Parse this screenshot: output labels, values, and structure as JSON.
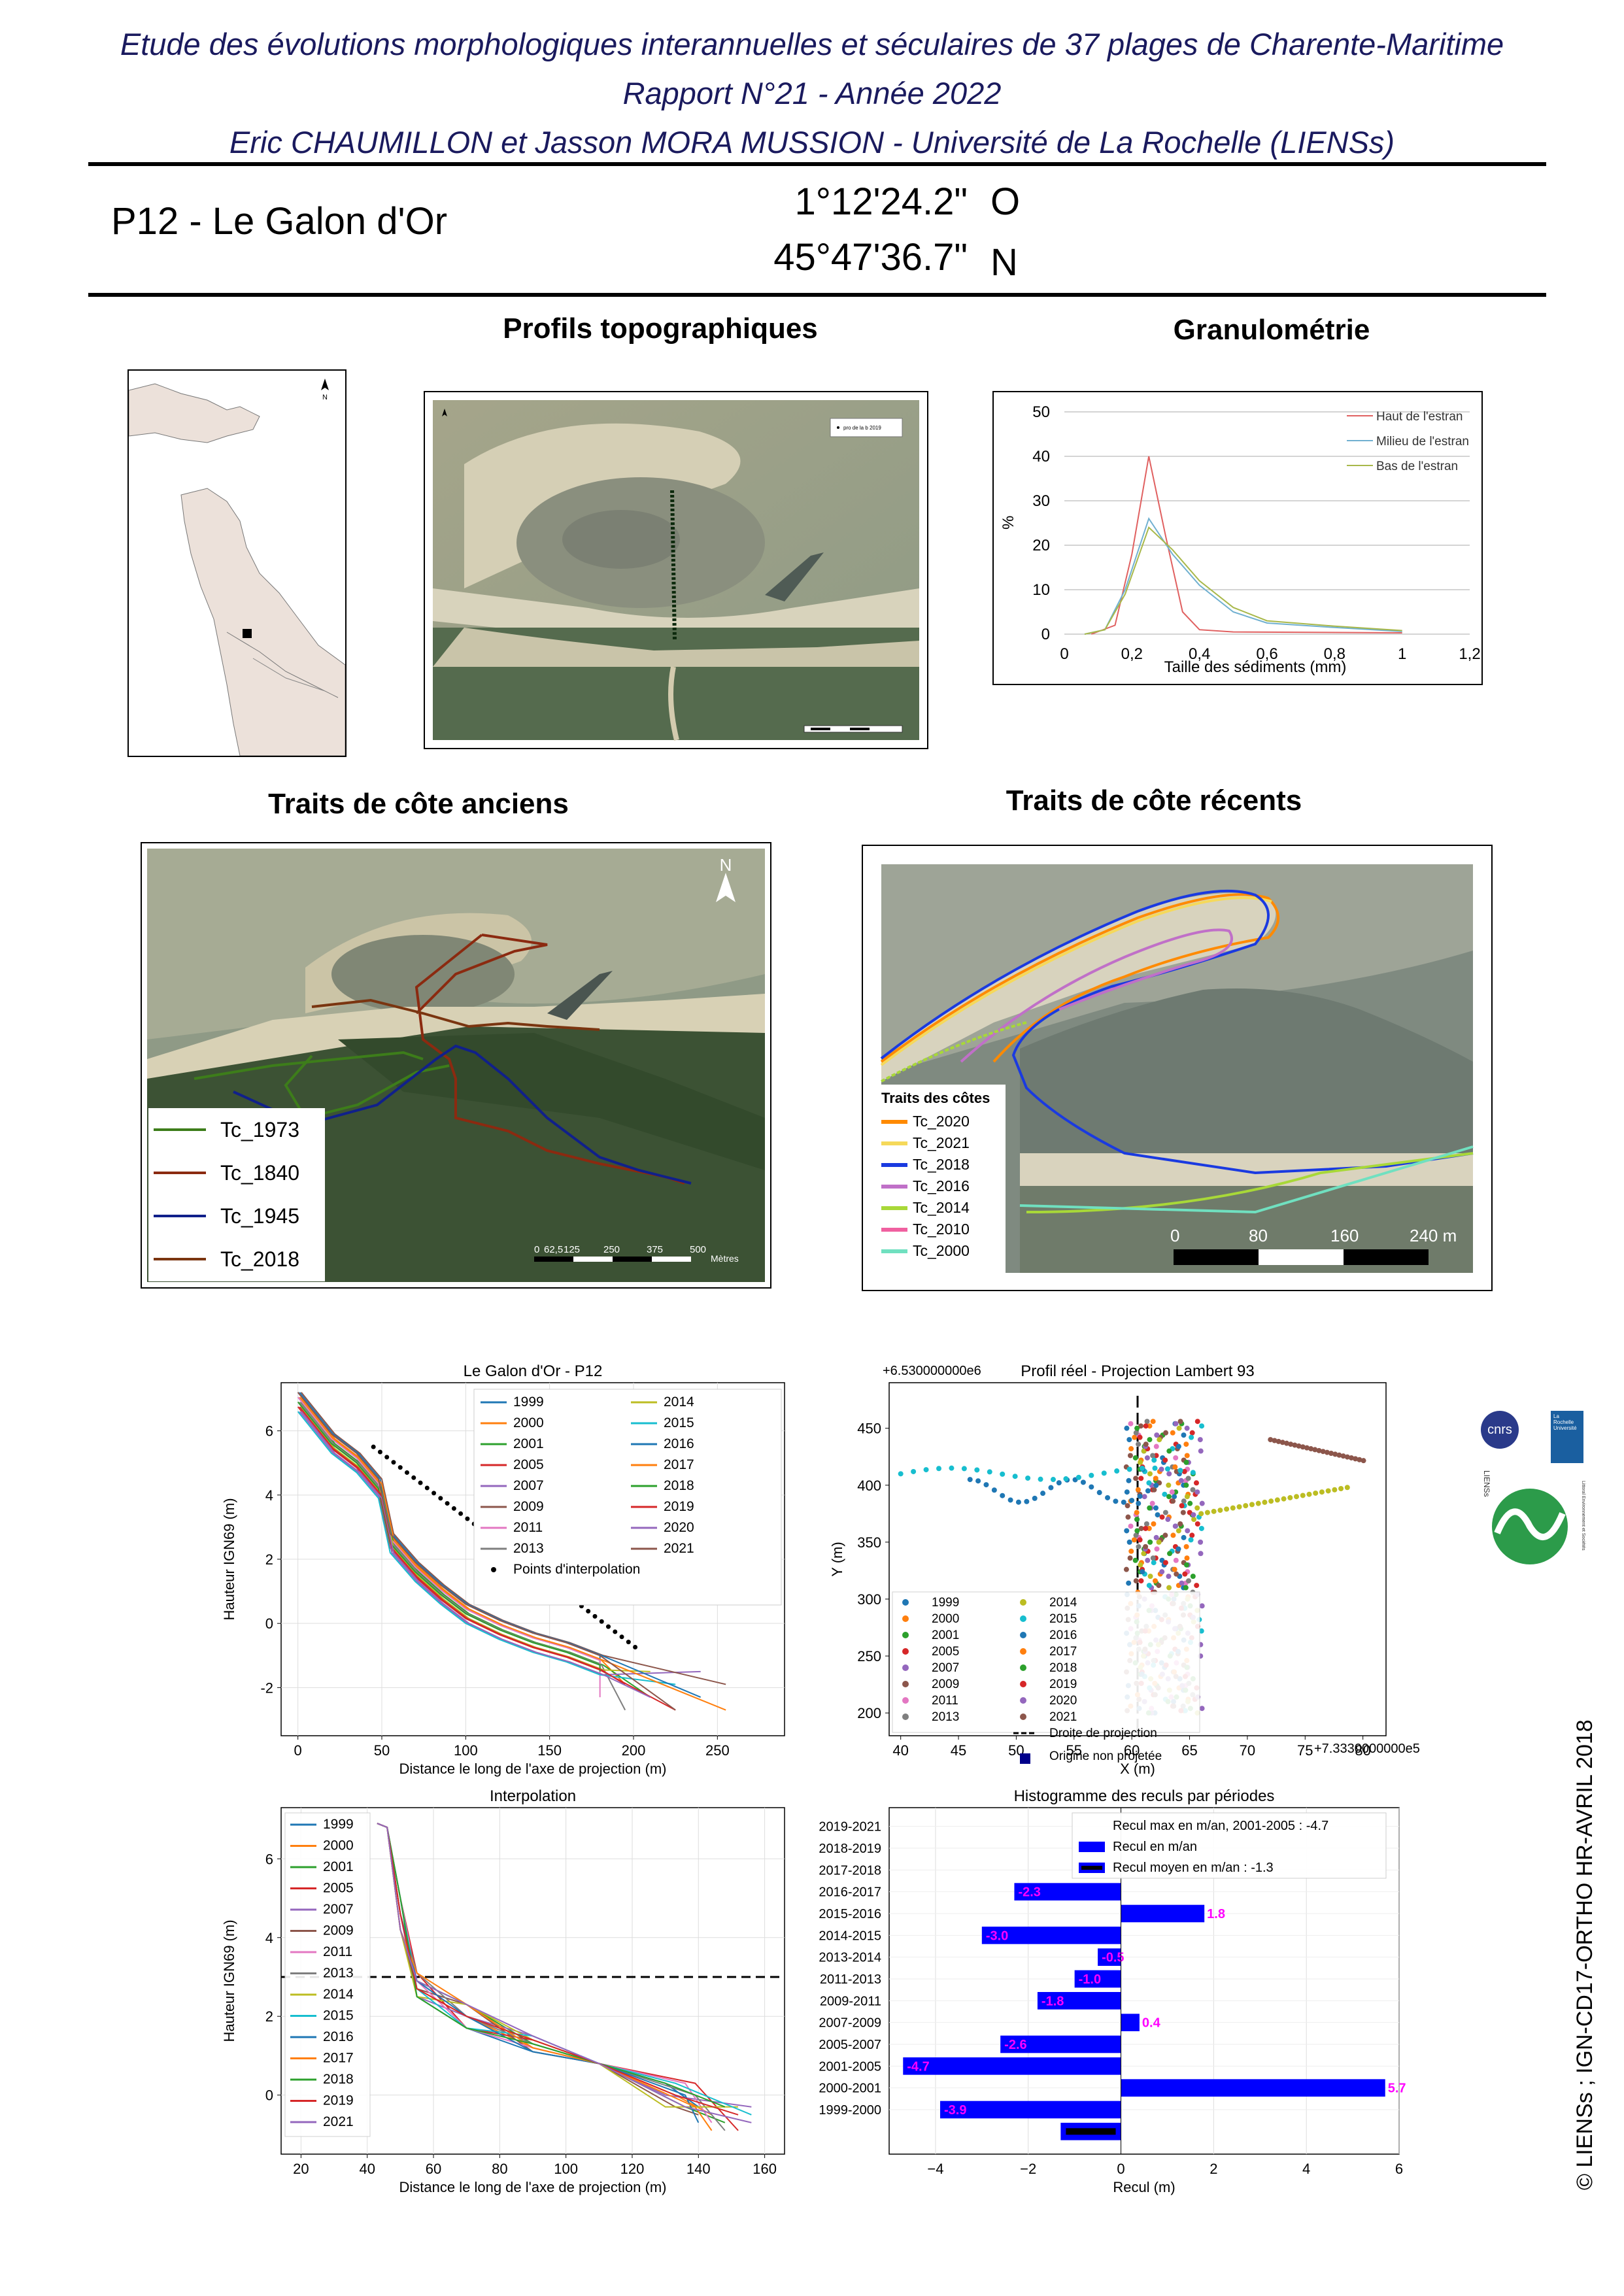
{
  "header": {
    "line1": "Etude des évolutions morphologiques interannuelles et séculaires de 37 plages de Charente-Maritime",
    "line2": "Rapport N°21 - Année 2022",
    "line3": "Eric CHAUMILLON et Jasson MORA MUSSION - Université de La Rochelle (LIENSs)"
  },
  "site": {
    "code_name": "P12 -  Le Galon d'Or",
    "lon": "1°12'24.2\"",
    "lon_dir": "O",
    "lat": "45°47'36.7\"",
    "lat_dir": "N"
  },
  "sections": {
    "profils": "Profils topographiques",
    "granulo": "Granulométrie",
    "anciens": "Traits de côte anciens",
    "recents": "Traits de côte récents"
  },
  "locator_map": {
    "north": "N"
  },
  "profile_photo": {
    "legend": "pro de la b 2019",
    "north": "N"
  },
  "granulo_chart": {
    "type": "line",
    "ylabel": "%",
    "xlabel": "Taille des sédiments (mm)",
    "xticks": [
      "0",
      "0,2",
      "0,4",
      "0,6",
      "0,8",
      "1",
      "1,2"
    ],
    "yticks": [
      "0",
      "10",
      "20",
      "30",
      "40",
      "50"
    ],
    "xlim": [
      0,
      1.2
    ],
    "ylim": [
      0,
      50
    ],
    "series": [
      {
        "name": "Haut de l'estran",
        "color": "#e06060",
        "points": [
          [
            0.08,
            0
          ],
          [
            0.15,
            2
          ],
          [
            0.2,
            18
          ],
          [
            0.25,
            40
          ],
          [
            0.3,
            22
          ],
          [
            0.35,
            5
          ],
          [
            0.4,
            1
          ],
          [
            0.5,
            0.5
          ],
          [
            1.0,
            0.3
          ]
        ]
      },
      {
        "name": "Milieu de l'estran",
        "color": "#70b0d0",
        "points": [
          [
            0.06,
            0
          ],
          [
            0.12,
            1
          ],
          [
            0.18,
            10
          ],
          [
            0.25,
            26
          ],
          [
            0.32,
            18
          ],
          [
            0.4,
            11
          ],
          [
            0.5,
            5
          ],
          [
            0.6,
            2.5
          ],
          [
            0.8,
            1.5
          ],
          [
            1.0,
            0.6
          ]
        ]
      },
      {
        "name": "Bas de l'estran",
        "color": "#a8b84a",
        "points": [
          [
            0.06,
            0
          ],
          [
            0.12,
            1
          ],
          [
            0.18,
            9
          ],
          [
            0.25,
            24
          ],
          [
            0.32,
            19
          ],
          [
            0.4,
            12
          ],
          [
            0.5,
            6
          ],
          [
            0.6,
            3
          ],
          [
            0.8,
            1.8
          ],
          [
            1.0,
            0.8
          ]
        ]
      }
    ]
  },
  "anciens_legend": [
    {
      "label": "Tc_1973",
      "color": "#3d7d1a"
    },
    {
      "label": "Tc_1840",
      "color": "#8b2a10"
    },
    {
      "label": "Tc_1945",
      "color": "#10208a"
    },
    {
      "label": "Tc_2018",
      "color": "#7a3510"
    }
  ],
  "anciens_scale": {
    "ticks": [
      "0",
      "62,5",
      "125",
      "250",
      "375",
      "500"
    ],
    "unit": "Mètres",
    "north": "N"
  },
  "recents_legend": {
    "title": "Traits des côtes",
    "items": [
      {
        "label": "Tc_2020",
        "color": "#ff8a00"
      },
      {
        "label": "Tc_2021",
        "color": "#f5d95a"
      },
      {
        "label": "Tc_2018",
        "color": "#1a3ae0"
      },
      {
        "label": "Tc_2016",
        "color": "#c070c8"
      },
      {
        "label": "Tc_2014",
        "color": "#a8d838"
      },
      {
        "label": "Tc_2010",
        "color": "#f060a0"
      },
      {
        "label": "Tc_2000",
        "color": "#70e0c0"
      }
    ]
  },
  "recents_scale": {
    "ticks": [
      "0",
      "80",
      "160",
      "240 m"
    ]
  },
  "chart_profiles": {
    "title": "Le Galon d'Or - P12",
    "xlabel": "Distance le long de l'axe de projection (m)",
    "ylabel": "Hauteur IGN69 (m)",
    "xticks": [
      "0",
      "50",
      "100",
      "150",
      "200",
      "250"
    ],
    "yticks": [
      "-2",
      "0",
      "2",
      "4",
      "6"
    ],
    "legend": [
      "1999",
      "2000",
      "2001",
      "2005",
      "2007",
      "2009",
      "2011",
      "2013",
      "2014",
      "2015",
      "2016",
      "2017",
      "2018",
      "2019",
      "2020",
      "2021"
    ],
    "points_label": "Points d'interpolation"
  },
  "chart_projection": {
    "title": "Profil réel - Projection Lambert 93",
    "offset_top": "+6.530000000e6",
    "offset_right": "+7.3330000000e5",
    "xlabel": "X (m)",
    "ylabel": "Y (m)",
    "xticks": [
      "40",
      "45",
      "50",
      "55",
      "60",
      "65",
      "70",
      "75",
      "80"
    ],
    "yticks": [
      "200",
      "250",
      "300",
      "350",
      "400",
      "450"
    ],
    "legend": [
      "1999",
      "2000",
      "2001",
      "2005",
      "2007",
      "2009",
      "2011",
      "2013",
      "2014",
      "2015",
      "2016",
      "2017",
      "2018",
      "2019",
      "2020",
      "2021"
    ],
    "proj_label": "Droite de projection",
    "origin_label": "Origine non projetée"
  },
  "chart_interp": {
    "title": "Interpolation",
    "xlabel": "Distance le long de l'axe de projection (m)",
    "ylabel": "Hauteur IGN69 (m)",
    "xticks": [
      "20",
      "40",
      "60",
      "80",
      "100",
      "120",
      "140",
      "160"
    ],
    "yticks": [
      "0",
      "2",
      "4",
      "6"
    ],
    "legend": [
      "1999",
      "2000",
      "2001",
      "2005",
      "2007",
      "2009",
      "2011",
      "2013",
      "2014",
      "2015",
      "2016",
      "2017",
      "2018",
      "2019",
      "2021"
    ]
  },
  "chart_data": {
    "type": "bar",
    "title": "Histogramme des reculs par périodes",
    "xlabel": "Recul (m)",
    "xlim": [
      -5,
      6
    ],
    "xticks": [
      "-4",
      "-2",
      "0",
      "2",
      "4",
      "6"
    ],
    "categories": [
      "2019-2021",
      "2018-2019",
      "2017-2018",
      "2016-2017",
      "2015-2016",
      "2014-2015",
      "2013-2014",
      "2011-2013",
      "2009-2011",
      "2007-2009",
      "2005-2007",
      "2001-2005",
      "2000-2001",
      "1999-2000"
    ],
    "values": [
      null,
      null,
      null,
      -2.3,
      1.8,
      -3.0,
      -0.5,
      -1.0,
      -1.8,
      0.4,
      -2.6,
      -4.7,
      5.7,
      -3.9
    ],
    "labels": [
      "",
      "",
      "",
      "-2.3",
      "1.8",
      "-3.0",
      "-0.5",
      "-1.0",
      "-1.8",
      "0.4",
      "-2.6",
      "-4.7",
      "5.7",
      "-3.9"
    ],
    "mean": -1.3,
    "legend": [
      "Recul max en m/an, 2001-2005 : -4.7",
      "Recul en m/an",
      "Recul moyen en m/an : -1.3"
    ]
  },
  "logos": {
    "cnrs": "cnrs",
    "lr": "La Rochelle Université",
    "liens": "LIENSs",
    "liens_sub": "Littoral Environnement et Sociétés"
  },
  "credit": "© LIENSs ; IGN-CD17-ORTHO HR-AVRIL 2018"
}
